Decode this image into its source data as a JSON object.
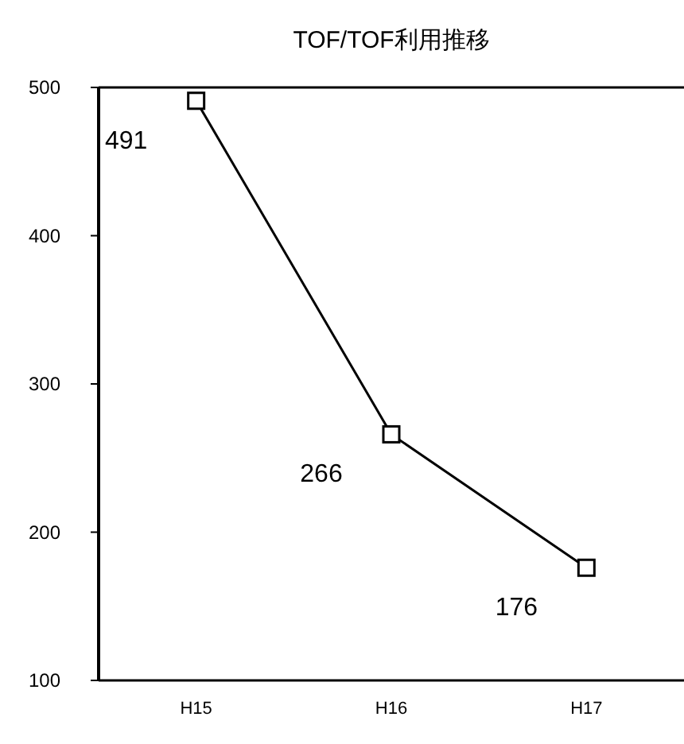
{
  "chart_data": {
    "type": "line",
    "title": "TOF/TOF利用推移",
    "categories": [
      "H15",
      "H16",
      "H17"
    ],
    "values": [
      491,
      266,
      176
    ],
    "color": "#000000",
    "ylim": [
      100,
      500
    ],
    "yticks": [
      100,
      200,
      300,
      400,
      500
    ],
    "marker": "square",
    "data_labels": true
  }
}
